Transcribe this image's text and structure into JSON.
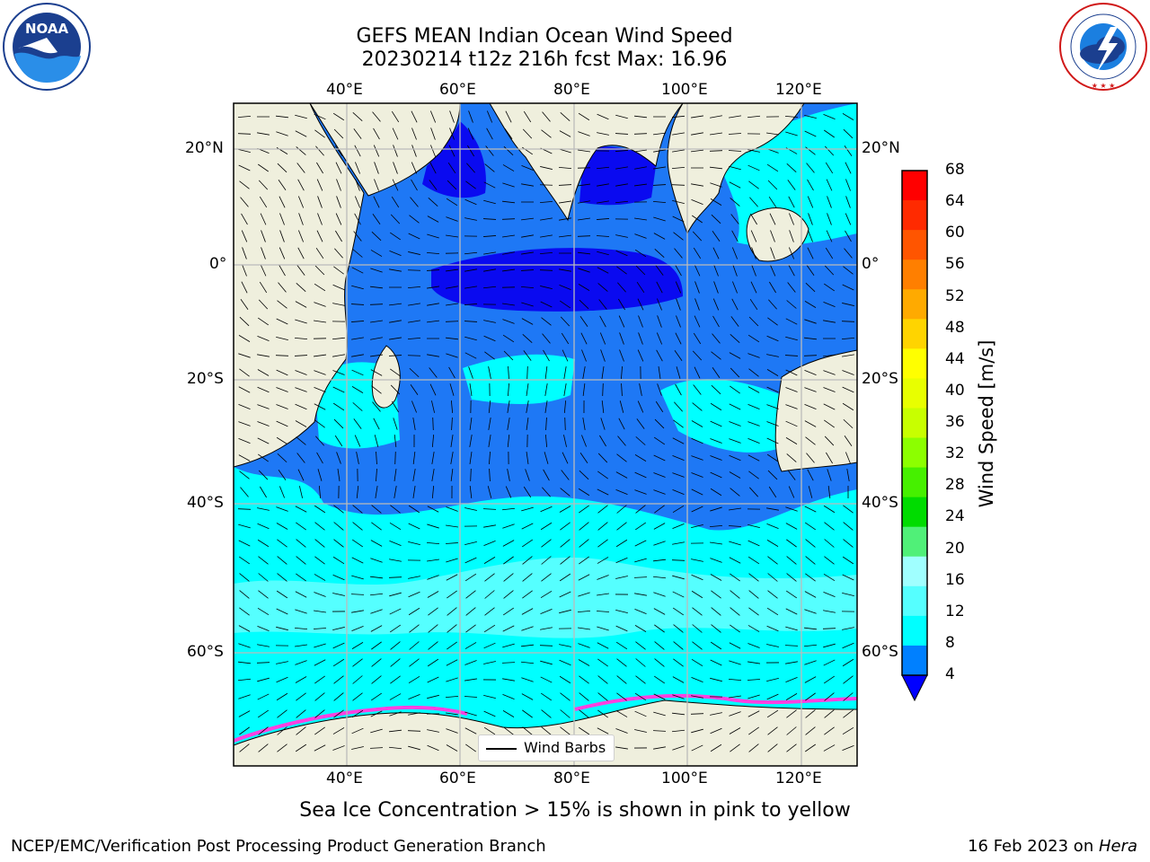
{
  "title_line1": "GEFS MEAN Indian Ocean Wind Speed",
  "title_line2": "20230214 t12z 216h fcst   Max: 16.96",
  "lon_labels": [
    "40°E",
    "60°E",
    "80°E",
    "100°E",
    "120°E"
  ],
  "lat_labels": [
    "20°N",
    "0°",
    "20°S",
    "40°S",
    "60°S"
  ],
  "colorbar": {
    "title": "Wind Speed [m/s]",
    "ticks": [
      "68",
      "64",
      "60",
      "56",
      "52",
      "48",
      "44",
      "40",
      "36",
      "32",
      "28",
      "24",
      "20",
      "16",
      "12",
      "8",
      "4"
    ],
    "colors": [
      "#ff0000",
      "#ff2a00",
      "#ff5500",
      "#ff7f00",
      "#ffaa00",
      "#ffd400",
      "#ffff00",
      "#e8ff00",
      "#c8ff00",
      "#8cff00",
      "#46f000",
      "#00dc00",
      "#50f078",
      "#a0ffff",
      "#55ffff",
      "#00ffff",
      "#0080ff"
    ],
    "under_color": "#0000ff"
  },
  "legend_label": "Wind Barbs",
  "caption": "Sea Ice Concentration > 15% is shown in pink to yellow",
  "footer_left": "NCEP/EMC/Verification Post Processing Product Generation Branch",
  "footer_right_date": "16 Feb 2023 on ",
  "footer_right_machine": "Hera",
  "logos": {
    "noaa": {
      "text": "NOAA",
      "ring_text": "NATIONAL OCEANIC AND ATMOSPHERIC ADMINISTRATION · U.S. DEPARTMENT OF COMMERCE"
    },
    "nws": {
      "ring_text": "NATIONAL WEATHER SERVICE"
    }
  },
  "colors": {
    "land": "#efefdd",
    "speed_4_8": "#1e78f5",
    "speed_under_4": "#0a0af0",
    "speed_8_12": "#00ffff",
    "speed_12_16": "#55ffff",
    "ice": "#ff40e0",
    "grid": "#bbbbbb"
  }
}
